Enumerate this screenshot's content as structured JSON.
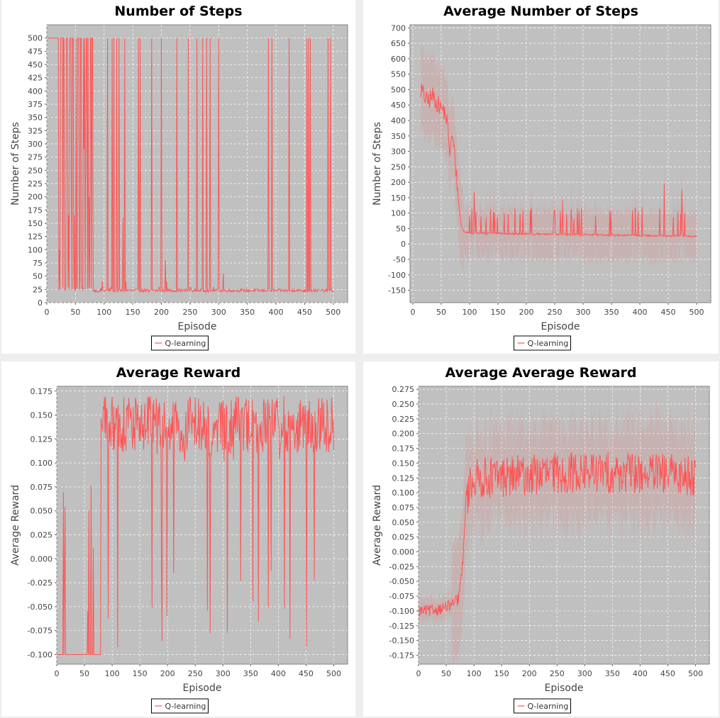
{
  "colors": {
    "series": "#ff5555",
    "plot_bg": "#c0c0c0",
    "grid": "#ffffff",
    "panel_bg": "#ffffff",
    "page_bg": "#eeeeee"
  },
  "chart_data": [
    {
      "type": "line",
      "title": "Number of Steps",
      "xlabel": "Episode",
      "ylabel": "Number of Steps",
      "xlim": [
        0,
        525
      ],
      "ylim": [
        0,
        525
      ],
      "xticks": [
        0,
        50,
        100,
        150,
        200,
        250,
        300,
        350,
        400,
        450,
        500
      ],
      "yticks": [
        0,
        25,
        50,
        75,
        100,
        125,
        150,
        175,
        200,
        225,
        250,
        275,
        300,
        325,
        350,
        375,
        400,
        425,
        450,
        475,
        500
      ],
      "grid": true,
      "legend": "bottom-center",
      "shaded_band": false,
      "series": [
        {
          "name": "Q-learning",
          "spikes": [
            [
              22,
              100
            ],
            [
              26,
              500
            ],
            [
              36,
              500
            ],
            [
              38,
              165
            ],
            [
              40,
              500
            ],
            [
              43,
              225
            ],
            [
              46,
              500
            ],
            [
              48,
              165
            ],
            [
              54,
              500
            ],
            [
              58,
              40
            ],
            [
              60,
              500
            ],
            [
              62,
              30
            ],
            [
              64,
              500
            ],
            [
              65,
              290
            ],
            [
              66,
              500
            ],
            [
              68,
              300
            ],
            [
              70,
              500
            ],
            [
              72,
              500
            ],
            [
              74,
              200
            ],
            [
              76,
              500
            ],
            [
              79,
              500
            ],
            [
              88,
              20
            ],
            [
              97,
              40
            ],
            [
              106,
              500
            ],
            [
              112,
              30
            ],
            [
              114,
              500
            ],
            [
              117,
              500
            ],
            [
              122,
              500
            ],
            [
              126,
              500
            ],
            [
              133,
              160
            ],
            [
              136,
              500
            ],
            [
              138,
              40
            ],
            [
              143,
              25
            ],
            [
              160,
              500
            ],
            [
              163,
              500
            ],
            [
              178,
              20
            ],
            [
              183,
              500
            ],
            [
              187,
              25
            ],
            [
              196,
              30
            ],
            [
              200,
              500
            ],
            [
              207,
              80
            ],
            [
              209,
              40
            ],
            [
              227,
              500
            ],
            [
              231,
              25
            ],
            [
              247,
              500
            ],
            [
              251,
              30
            ],
            [
              262,
              500
            ],
            [
              272,
              500
            ],
            [
              279,
              500
            ],
            [
              285,
              500
            ],
            [
              291,
              30
            ],
            [
              300,
              500
            ],
            [
              308,
              55
            ],
            [
              387,
              500
            ],
            [
              393,
              500
            ],
            [
              423,
              500
            ],
            [
              432,
              25
            ],
            [
              454,
              500
            ],
            [
              457,
              500
            ],
            [
              460,
              500
            ],
            [
              483,
              25
            ],
            [
              491,
              500
            ],
            [
              495,
              500
            ]
          ]
        }
      ]
    },
    {
      "type": "line",
      "title": "Average Number of Steps",
      "xlabel": "Episode",
      "ylabel": "Number of Steps",
      "xlim": [
        -5,
        525
      ],
      "ylim": [
        -190,
        710
      ],
      "xticks": [
        0,
        50,
        100,
        150,
        200,
        250,
        300,
        350,
        400,
        450,
        500
      ],
      "yticks": [
        -150,
        -100,
        -50,
        0,
        50,
        100,
        150,
        200,
        250,
        300,
        350,
        400,
        450,
        500,
        550,
        600,
        650,
        700
      ],
      "grid": true,
      "legend": "bottom-center",
      "shaded_band": true,
      "series": [
        {
          "name": "Q-learning",
          "profile": [
            [
              0,
              500
            ],
            [
              15,
              500
            ],
            [
              25,
              460
            ],
            [
              35,
              480
            ],
            [
              45,
              450
            ],
            [
              55,
              430
            ],
            [
              60,
              400
            ],
            [
              65,
              300
            ],
            [
              70,
              350
            ],
            [
              75,
              260
            ],
            [
              80,
              150
            ],
            [
              85,
              60
            ],
            [
              90,
              40
            ],
            [
              100,
              35
            ],
            [
              500,
              25
            ]
          ],
          "spike_max": 220
        }
      ]
    },
    {
      "type": "line",
      "title": "Average Reward",
      "xlabel": "Episode",
      "ylabel": "Average Reward",
      "xlim": [
        0,
        525
      ],
      "ylim": [
        -0.11,
        0.18
      ],
      "xticks": [
        0,
        50,
        100,
        150,
        200,
        250,
        300,
        350,
        400,
        450,
        500
      ],
      "yticks": [
        -0.1,
        -0.075,
        -0.05,
        -0.025,
        0.0,
        0.025,
        0.05,
        0.075,
        0.1,
        0.125,
        0.15,
        0.175
      ],
      "ytick_labels": [
        "-0.100",
        "-0.075",
        "-0.050",
        "-0.025",
        "0.000",
        "0.025",
        "0.050",
        "0.075",
        "0.100",
        "0.125",
        "0.150",
        "0.175"
      ],
      "grid": true,
      "legend": "bottom-center",
      "shaded_band": false,
      "series": [
        {
          "name": "Q-learning",
          "profile": [
            [
              0,
              -0.1
            ],
            [
              20,
              -0.1
            ],
            [
              50,
              -0.1
            ],
            [
              70,
              -0.09
            ],
            [
              85,
              0.15
            ],
            [
              100,
              0.14
            ],
            [
              500,
              0.145
            ]
          ],
          "drop_min": -0.1
        }
      ]
    },
    {
      "type": "line",
      "title": "Average Average Reward",
      "xlabel": "Episode",
      "ylabel": "Average Reward",
      "xlim": [
        0,
        525
      ],
      "ylim": [
        -0.19,
        0.28
      ],
      "xticks": [
        0,
        50,
        100,
        150,
        200,
        250,
        300,
        350,
        400,
        450,
        500
      ],
      "yticks": [
        -0.175,
        -0.15,
        -0.125,
        -0.1,
        -0.075,
        -0.05,
        -0.025,
        0.0,
        0.025,
        0.05,
        0.075,
        0.1,
        0.125,
        0.15,
        0.175,
        0.2,
        0.225,
        0.25,
        0.275
      ],
      "ytick_labels": [
        "-0.175",
        "-0.150",
        "-0.125",
        "-0.100",
        "-0.075",
        "-0.050",
        "-0.025",
        "0.000",
        "0.025",
        "0.050",
        "0.075",
        "0.100",
        "0.125",
        "0.150",
        "0.175",
        "0.200",
        "0.225",
        "0.250",
        "0.275"
      ],
      "grid": true,
      "legend": "bottom-center",
      "shaded_band": true,
      "series": [
        {
          "name": "Q-learning",
          "profile": [
            [
              0,
              -0.1
            ],
            [
              20,
              -0.1
            ],
            [
              45,
              -0.095
            ],
            [
              60,
              -0.09
            ],
            [
              72,
              -0.08
            ],
            [
              80,
              -0.02
            ],
            [
              85,
              0.08
            ],
            [
              95,
              0.12
            ],
            [
              120,
              0.125
            ],
            [
              200,
              0.13
            ],
            [
              300,
              0.135
            ],
            [
              500,
              0.13
            ]
          ]
        }
      ]
    }
  ]
}
